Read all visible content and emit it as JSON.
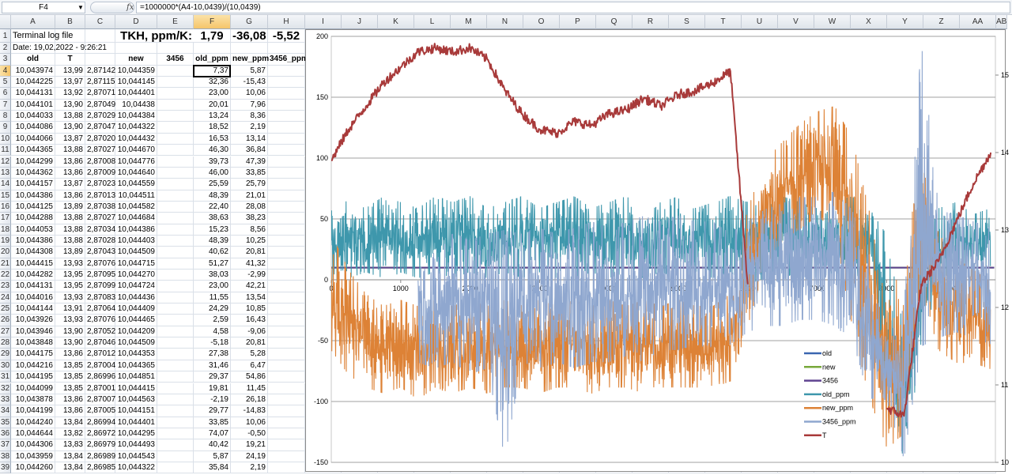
{
  "formula_bar": {
    "name_box": "F4",
    "fx_label": "fx",
    "formula": "=1000000*(A4-10,0439)/(10,0439)"
  },
  "columns": [
    "A",
    "B",
    "C",
    "D",
    "E",
    "F",
    "G",
    "H",
    "I",
    "J",
    "K",
    "L",
    "M",
    "N",
    "O",
    "P",
    "Q",
    "R",
    "S",
    "T",
    "U",
    "V",
    "W",
    "X",
    "Y",
    "Z",
    "AA",
    "AB"
  ],
  "selected_cell": "F4",
  "row1": {
    "title": "Terminal log file",
    "tkh_label": "TKH, ppm/K:",
    "tkh_old": "1,79",
    "tkh_new": "-36,08",
    "tkh_3456": "-5,52"
  },
  "row2": {
    "date": "Date: 19,02,2022 - 9:26:21"
  },
  "headers": [
    "old",
    "T",
    "",
    "new",
    "3456",
    "old_ppm",
    "new_ppm",
    "3456_ppm"
  ],
  "rows": [
    [
      "10,043974",
      "13,99",
      "2,87142",
      "10,044359",
      "7,37",
      "5,87"
    ],
    [
      "10,044225",
      "13,97",
      "2,87115",
      "10,044145",
      "32,36",
      "-15,43"
    ],
    [
      "10,044131",
      "13,92",
      "2,87071",
      "10,044401",
      "23,00",
      "10,06"
    ],
    [
      "10,044101",
      "13,90",
      "2,87049",
      "10,04438",
      "20,01",
      "7,96"
    ],
    [
      "10,044033",
      "13,88",
      "2,87029",
      "10,044384",
      "13,24",
      "8,36"
    ],
    [
      "10,044086",
      "13,90",
      "2,87047",
      "10,044322",
      "18,52",
      "2,19"
    ],
    [
      "10,044066",
      "13,87",
      "2,87020",
      "10,044432",
      "16,53",
      "13,14"
    ],
    [
      "10,044365",
      "13,88",
      "2,87027",
      "10,044670",
      "46,30",
      "36,84"
    ],
    [
      "10,044299",
      "13,86",
      "2,87008",
      "10,044776",
      "39,73",
      "47,39"
    ],
    [
      "10,044362",
      "13,86",
      "2,87009",
      "10,044640",
      "46,00",
      "33,85"
    ],
    [
      "10,044157",
      "13,87",
      "2,87023",
      "10,044559",
      "25,59",
      "25,79"
    ],
    [
      "10,044386",
      "13,86",
      "2,87013",
      "10,044511",
      "48,39",
      "21,01"
    ],
    [
      "10,044125",
      "13,89",
      "2,87038",
      "10,044582",
      "22,40",
      "28,08"
    ],
    [
      "10,044288",
      "13,88",
      "2,87027",
      "10,044684",
      "38,63",
      "38,23"
    ],
    [
      "10,044053",
      "13,88",
      "2,87034",
      "10,044386",
      "15,23",
      "8,56"
    ],
    [
      "10,044386",
      "13,88",
      "2,87028",
      "10,044403",
      "48,39",
      "10,25"
    ],
    [
      "10,044308",
      "13,89",
      "2,87043",
      "10,044509",
      "40,62",
      "20,81"
    ],
    [
      "10,044415",
      "13,93",
      "2,87076",
      "10,044715",
      "51,27",
      "41,32"
    ],
    [
      "10,044282",
      "13,95",
      "2,87095",
      "10,044270",
      "38,03",
      "-2,99"
    ],
    [
      "10,044131",
      "13,95",
      "2,87099",
      "10,044724",
      "23,00",
      "42,21"
    ],
    [
      "10,044016",
      "13,93",
      "2,87083",
      "10,044436",
      "11,55",
      "13,54"
    ],
    [
      "10,044144",
      "13,91",
      "2,87064",
      "10,044409",
      "24,29",
      "10,85"
    ],
    [
      "10,043926",
      "13,93",
      "2,87076",
      "10,044465",
      "2,59",
      "16,43"
    ],
    [
      "10,043946",
      "13,90",
      "2,87052",
      "10,044209",
      "4,58",
      "-9,06"
    ],
    [
      "10,043848",
      "13,90",
      "2,87046",
      "10,044509",
      "-5,18",
      "20,81"
    ],
    [
      "10,044175",
      "13,86",
      "2,87012",
      "10,044353",
      "27,38",
      "5,28"
    ],
    [
      "10,044216",
      "13,85",
      "2,87004",
      "10,044365",
      "31,46",
      "6,47"
    ],
    [
      "10,044195",
      "13,85",
      "2,86996",
      "10,044851",
      "29,37",
      "54,86"
    ],
    [
      "10,044099",
      "13,85",
      "2,87001",
      "10,044415",
      "19,81",
      "11,45"
    ],
    [
      "10,043878",
      "13,86",
      "2,87007",
      "10,044563",
      "-2,19",
      "26,18"
    ],
    [
      "10,044199",
      "13,86",
      "2,87005",
      "10,044151",
      "29,77",
      "-14,83"
    ],
    [
      "10,044240",
      "13,84",
      "2,86994",
      "10,044401",
      "33,85",
      "10,06"
    ],
    [
      "10,044644",
      "13,82",
      "2,86972",
      "10,044295",
      "74,07",
      "-0,50"
    ],
    [
      "10,044306",
      "13,83",
      "2,86979",
      "10,044493",
      "40,42",
      "19,21"
    ],
    [
      "10,043959",
      "13,84",
      "2,86989",
      "10,044543",
      "5,87",
      "24,19"
    ],
    [
      "10,044260",
      "13,84",
      "2,86985",
      "10,044322",
      "35,84",
      "2,19"
    ]
  ],
  "chart_data": {
    "type": "line",
    "grid": "horizontal",
    "legend_position": "bottom-right",
    "x_ticks": [
      0,
      1000,
      2000,
      3000,
      4000,
      5000,
      6000,
      7000,
      8000,
      9000
    ],
    "xlim": [
      0,
      9550
    ],
    "ylim_left": [
      -150,
      200
    ],
    "y_ticks_left": [
      200,
      150,
      100,
      50,
      0,
      -50,
      -100,
      -150
    ],
    "ylim_right": [
      10,
      15.5
    ],
    "y_ticks_right": [
      15,
      14,
      13,
      12,
      11,
      10
    ],
    "x": [
      0,
      250,
      500,
      750,
      1000,
      1250,
      1500,
      1750,
      2000,
      2250,
      2500,
      2750,
      3000,
      3250,
      3500,
      3750,
      4000,
      4250,
      4500,
      4750,
      5000,
      5250,
      5500,
      5750,
      6000,
      6250,
      6500,
      6750,
      7000,
      7250,
      7500,
      7750,
      8000,
      8250,
      8500,
      8750,
      9000,
      9250,
      9500
    ],
    "series": [
      {
        "name": "old",
        "color": "#3a66b0",
        "axis": "left",
        "values_const": 10
      },
      {
        "name": "new",
        "color": "#77a83a",
        "axis": "left",
        "values_const": 10
      },
      {
        "name": "3456",
        "color": "#5f4390",
        "axis": "left",
        "values_const": 10
      },
      {
        "name": "old_ppm",
        "color": "#3e97ac",
        "axis": "left",
        "min": [
          -10,
          0,
          5,
          0,
          5,
          0,
          5,
          0,
          5,
          0,
          5,
          0,
          5,
          0,
          0,
          5,
          0,
          5,
          0,
          5,
          0,
          5,
          0,
          5,
          -5,
          0,
          0,
          5,
          0,
          5,
          0,
          5,
          -100,
          -150,
          -60,
          0,
          5,
          0,
          5
        ],
        "max": [
          70,
          65,
          60,
          70,
          65,
          60,
          70,
          65,
          70,
          60,
          65,
          70,
          60,
          65,
          70,
          60,
          65,
          70,
          60,
          65,
          70,
          60,
          65,
          70,
          65,
          60,
          70,
          65,
          60,
          65,
          70,
          60,
          40,
          -40,
          20,
          60,
          65,
          55,
          60
        ]
      },
      {
        "name": "new_ppm",
        "color": "#dd8236",
        "axis": "left",
        "min": [
          -60,
          -80,
          -90,
          -95,
          -90,
          -100,
          -90,
          -95,
          -90,
          -95,
          -90,
          -90,
          -95,
          -90,
          -90,
          -95,
          -90,
          -90,
          -95,
          -90,
          -90,
          -90,
          -90,
          -85,
          -40,
          10,
          30,
          40,
          50,
          40,
          -40,
          -100,
          -140,
          -130,
          -10,
          -60,
          -70,
          -70,
          -75
        ],
        "max": [
          40,
          10,
          -10,
          -20,
          -15,
          -20,
          -15,
          -20,
          -15,
          -20,
          -15,
          -20,
          -15,
          -20,
          -15,
          -20,
          -15,
          -20,
          -15,
          -20,
          -15,
          -20,
          -20,
          -10,
          60,
          100,
          115,
          130,
          140,
          145,
          120,
          60,
          -20,
          20,
          100,
          40,
          20,
          10,
          0
        ]
      },
      {
        "name": "3456_ppm",
        "color": "#8fa7cf",
        "axis": "left",
        "min": [
          null,
          null,
          null,
          null,
          null,
          -70,
          -75,
          -70,
          -80,
          -75,
          -150,
          -70,
          -75,
          -70,
          -75,
          -70,
          -70,
          -65,
          -70,
          -60,
          -60,
          -55,
          -60,
          -55,
          -45,
          -40,
          -40,
          -35,
          -35,
          -40,
          -50,
          -100,
          -100,
          -150,
          -60,
          -50,
          -45,
          -50,
          -55
        ],
        "max": [
          null,
          null,
          null,
          null,
          null,
          30,
          35,
          40,
          35,
          40,
          45,
          40,
          45,
          40,
          45,
          50,
          45,
          50,
          55,
          50,
          55,
          50,
          50,
          40,
          50,
          60,
          65,
          70,
          70,
          75,
          60,
          20,
          -50,
          -20,
          200,
          60,
          55,
          50,
          45
        ]
      },
      {
        "name": "T",
        "color": "#a83a3a",
        "axis": "right",
        "values": [
          13.9,
          14.3,
          14.6,
          14.9,
          15.1,
          15.3,
          15.35,
          15.3,
          15.35,
          15.2,
          14.8,
          14.5,
          14.3,
          14.25,
          14.4,
          14.35,
          14.5,
          14.55,
          14.7,
          14.6,
          14.75,
          14.8,
          14.9,
          15.05,
          12.3,
          null,
          null,
          null,
          null,
          null,
          null,
          null,
          10.7,
          10.6,
          12.3,
          12.6,
          13.1,
          13.6,
          14.0
        ]
      }
    ]
  }
}
